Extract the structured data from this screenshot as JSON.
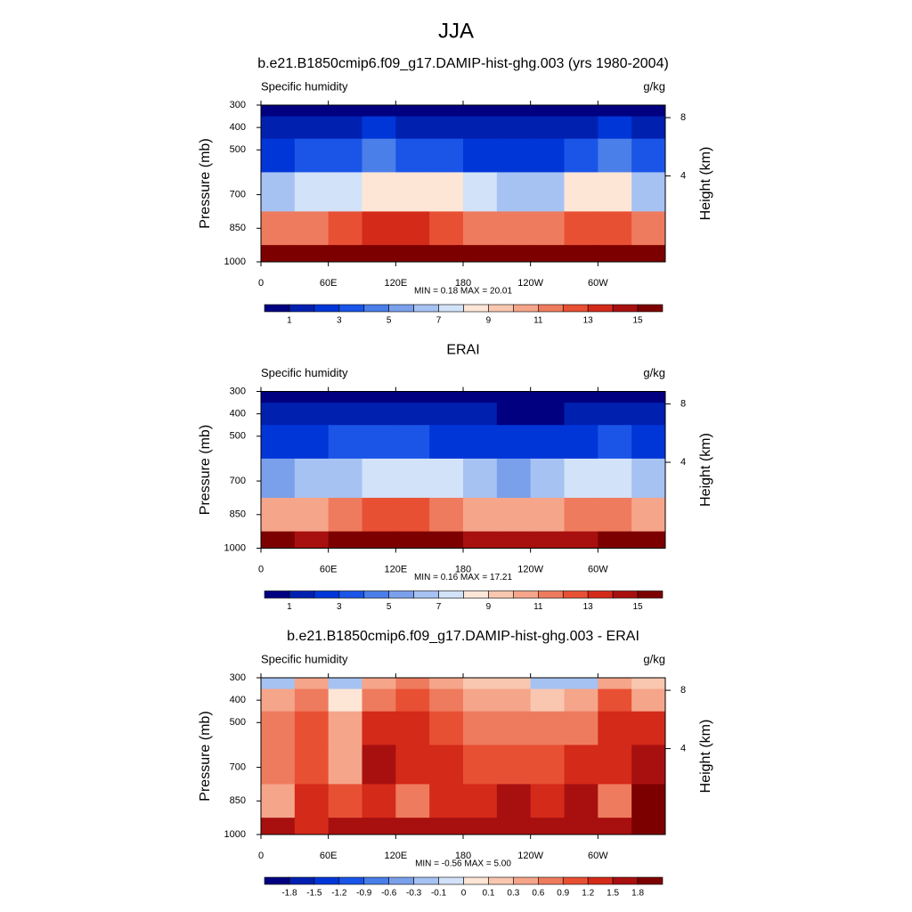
{
  "title": "JJA",
  "chart_data": [
    {
      "type": "contour",
      "title": "b.e21.B1850cmip6.f09_g17.DAMIP-hist-ghg.003 (yrs 1980-2004)",
      "left_string": "Specific humidity",
      "right_string": "g/kg",
      "ylabel": "Pressure (mb)",
      "y2label": "Height (km)",
      "stats": "MIN =   0.18  MAX =  20.01",
      "xlim": [
        0,
        360
      ],
      "ylim": [
        1000,
        300
      ],
      "y2ticks": [
        4,
        8
      ],
      "xticks": [
        0,
        {
          "value": 60,
          "label": "60E"
        },
        {
          "value": 120,
          "label": "120E"
        },
        180,
        {
          "value": 240,
          "label": "120W"
        },
        {
          "value": 300,
          "label": "60W"
        }
      ],
      "yticks": [
        300,
        400,
        500,
        700,
        850,
        1000
      ],
      "levels": [
        1,
        2,
        3,
        4,
        5,
        6,
        7,
        8,
        9,
        10,
        11,
        12,
        13,
        14,
        15
      ],
      "level_label_step": 2,
      "colors": [
        "#000080",
        "#0020b0",
        "#0036d8",
        "#1a55e8",
        "#4a7ee8",
        "#7aa0ec",
        "#a6c2f2",
        "#d2e2f8",
        "#fde6d6",
        "#f9c7b0",
        "#f5a58a",
        "#ef7b5e",
        "#e85034",
        "#d42a1a",
        "#a81010",
        "#7d0000"
      ],
      "x": [
        15,
        45,
        75,
        105,
        135,
        165,
        195,
        225,
        255,
        285,
        315,
        345
      ],
      "y": [
        300,
        400,
        500,
        700,
        850,
        1000
      ],
      "field": [
        [
          0.3,
          0.4,
          0.5,
          0.5,
          0.4,
          0.4,
          0.3,
          0.3,
          0.3,
          0.3,
          0.5,
          0.3
        ],
        [
          1.2,
          1.5,
          1.8,
          2,
          1.8,
          1.6,
          1.2,
          1,
          1,
          1.4,
          2,
          1.4
        ],
        [
          2.8,
          3,
          3.5,
          4,
          3.8,
          3.4,
          2.8,
          2.3,
          2.5,
          3,
          4,
          3
        ],
        [
          6,
          7,
          7,
          8.5,
          8.5,
          8,
          7,
          6,
          6.5,
          8,
          8,
          6.5
        ],
        [
          11,
          11,
          12,
          13,
          13,
          12,
          11,
          11,
          11,
          12,
          12,
          11
        ],
        [
          16,
          15,
          16,
          16,
          16,
          16,
          15,
          15,
          15,
          15,
          16,
          16
        ]
      ]
    },
    {
      "type": "contour",
      "title": "ERAI",
      "left_string": "Specific humidity",
      "right_string": "g/kg",
      "ylabel": "Pressure (mb)",
      "y2label": "Height (km)",
      "stats": "MIN =   0.16  MAX =  17.21",
      "xlim": [
        0,
        360
      ],
      "ylim": [
        1000,
        300
      ],
      "y2ticks": [
        4,
        8
      ],
      "xticks": [
        0,
        {
          "value": 60,
          "label": "60E"
        },
        {
          "value": 120,
          "label": "120E"
        },
        180,
        {
          "value": 240,
          "label": "120W"
        },
        {
          "value": 300,
          "label": "60W"
        }
      ],
      "yticks": [
        300,
        400,
        500,
        700,
        850,
        1000
      ],
      "levels": [
        1,
        2,
        3,
        4,
        5,
        6,
        7,
        8,
        9,
        10,
        11,
        12,
        13,
        14,
        15
      ],
      "level_label_step": 2,
      "colors": [
        "#000080",
        "#0020b0",
        "#0036d8",
        "#1a55e8",
        "#4a7ee8",
        "#7aa0ec",
        "#a6c2f2",
        "#d2e2f8",
        "#fde6d6",
        "#f9c7b0",
        "#f5a58a",
        "#ef7b5e",
        "#e85034",
        "#d42a1a",
        "#a81010",
        "#7d0000"
      ],
      "x": [
        15,
        45,
        75,
        105,
        135,
        165,
        195,
        225,
        255,
        285,
        315,
        345
      ],
      "y": [
        300,
        400,
        500,
        700,
        850,
        1000
      ],
      "field": [
        [
          0.3,
          0.3,
          0.4,
          0.4,
          0.3,
          0.3,
          0.2,
          0.2,
          0.2,
          0.3,
          0.4,
          0.3
        ],
        [
          1,
          1.2,
          1.5,
          1.6,
          1.4,
          1.2,
          1,
          0.8,
          0.8,
          1.1,
          1.6,
          1.1
        ],
        [
          2.3,
          2.5,
          3,
          3.2,
          3,
          2.7,
          2.3,
          2,
          2.1,
          2.5,
          3.2,
          2.4
        ],
        [
          5.5,
          6,
          6.5,
          7.5,
          7.5,
          7,
          6,
          5.5,
          6,
          7,
          7,
          6
        ],
        [
          10.5,
          10,
          11,
          12,
          12,
          11,
          10,
          10,
          10,
          11,
          11,
          10.5
        ],
        [
          15,
          14,
          15,
          15,
          15,
          15,
          14,
          14,
          14,
          14,
          15,
          15
        ]
      ]
    },
    {
      "type": "contour",
      "title": "b.e21.B1850cmip6.f09_g17.DAMIP-hist-ghg.003 - ERAI",
      "left_string": "Specific humidity",
      "right_string": "g/kg",
      "ylabel": "Pressure (mb)",
      "y2label": "Height (km)",
      "stats": "MIN =  -0.56  MAX =   5.00",
      "xlim": [
        0,
        360
      ],
      "ylim": [
        1000,
        300
      ],
      "y2ticks": [
        4,
        8
      ],
      "xticks": [
        0,
        {
          "value": 60,
          "label": "60E"
        },
        {
          "value": 120,
          "label": "120E"
        },
        180,
        {
          "value": 240,
          "label": "120W"
        },
        {
          "value": 300,
          "label": "60W"
        }
      ],
      "yticks": [
        300,
        400,
        500,
        700,
        850,
        1000
      ],
      "levels": [
        -1.8,
        -1.5,
        -1.2,
        -0.9,
        -0.6,
        -0.3,
        -0.1,
        0,
        0.1,
        0.3,
        0.6,
        0.9,
        1.2,
        1.5,
        1.8
      ],
      "level_label_step": 1,
      "colors": [
        "#000080",
        "#0020b0",
        "#0036d8",
        "#1a55e8",
        "#4a7ee8",
        "#7aa0ec",
        "#a6c2f2",
        "#d2e2f8",
        "#fde6d6",
        "#f9c7b0",
        "#f5a58a",
        "#ef7b5e",
        "#e85034",
        "#d42a1a",
        "#a81010",
        "#7d0000"
      ],
      "x": [
        15,
        45,
        75,
        105,
        135,
        165,
        195,
        225,
        255,
        285,
        315,
        345
      ],
      "y": [
        300,
        400,
        500,
        700,
        850,
        1000
      ],
      "field": [
        [
          -0.2,
          0.3,
          -0.3,
          0.3,
          0.6,
          0.3,
          0.1,
          0.1,
          -0.2,
          -0.3,
          0.5,
          0.1
        ],
        [
          0.3,
          0.6,
          0,
          0.6,
          0.9,
          0.6,
          0.3,
          0.3,
          0.1,
          0.3,
          0.9,
          0.5
        ],
        [
          0.6,
          0.9,
          0.3,
          1.2,
          1.2,
          0.9,
          0.6,
          0.6,
          0.6,
          0.6,
          1.2,
          1.2
        ],
        [
          0.6,
          0.9,
          0.3,
          1.5,
          1.2,
          1.2,
          0.9,
          0.9,
          0.9,
          1.2,
          1.2,
          1.5
        ],
        [
          0.3,
          1.2,
          0.9,
          1.2,
          0.6,
          1.2,
          1.2,
          1.5,
          1.2,
          1.5,
          0.6,
          1.8
        ],
        [
          1.5,
          1.2,
          1.5,
          1.5,
          1.5,
          1.5,
          1.5,
          1.5,
          1.5,
          1.5,
          1.5,
          1.8
        ]
      ]
    }
  ]
}
